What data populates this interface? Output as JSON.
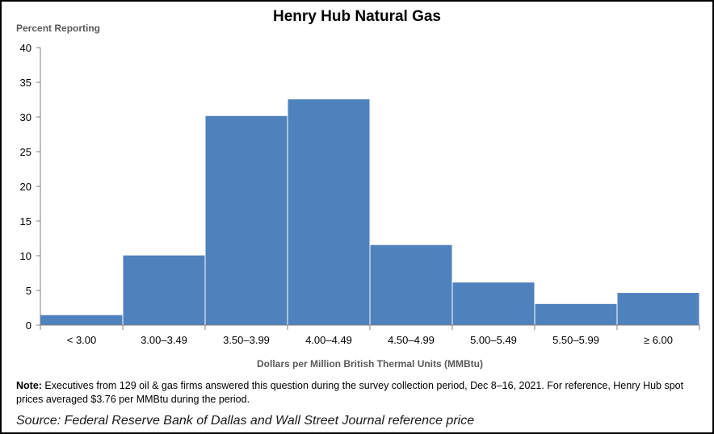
{
  "chart_data": {
    "type": "bar",
    "title": "Henry Hub Natural Gas",
    "ylabel": "Percent Reporting",
    "xlabel": "Dollars per Million British Thermal Units (MMBtu)",
    "categories": [
      "< 3.00",
      "3.00–3.49",
      "3.50–3.99",
      "4.00–4.49",
      "4.50–4.99",
      "5.00–5.49",
      "5.50–5.99",
      "≥ 6.00"
    ],
    "values": [
      1.5,
      10.1,
      30.2,
      32.6,
      11.6,
      6.2,
      3.1,
      4.7
    ],
    "ylim": [
      0,
      40
    ],
    "yticks": [
      0,
      5,
      10,
      15,
      20,
      25,
      30,
      35,
      40
    ],
    "grid": false,
    "bar_color": "#4f81bd"
  },
  "note": {
    "label": "Note:",
    "text": " Executives from 129 oil & gas firms answered this question during the survey collection period, Dec 8–16, 2021. For reference, Henry Hub spot prices averaged $3.76 per MMBtu during the period."
  },
  "source": "Source: Federal Reserve Bank of Dallas and Wall Street Journal reference price"
}
